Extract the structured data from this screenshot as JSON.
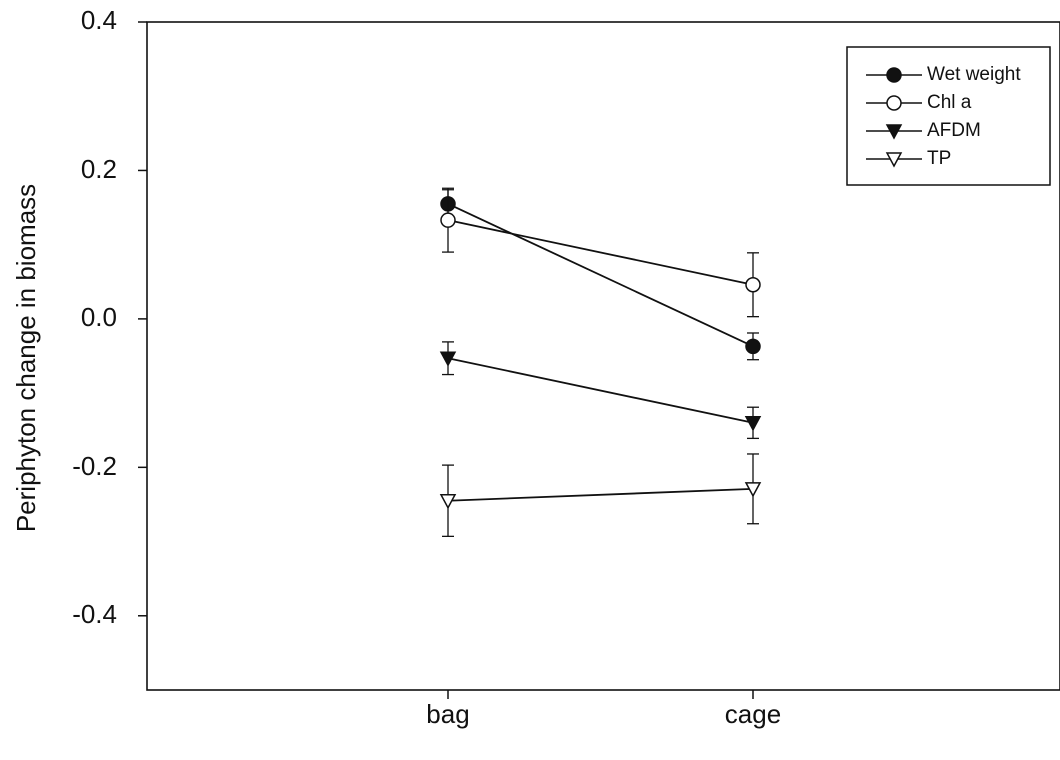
{
  "chart_data": {
    "type": "line",
    "categories": [
      "bag",
      "cage"
    ],
    "xlabel": "",
    "ylabel": "Periphyton change in biomass",
    "ylim": [
      -0.5,
      0.4
    ],
    "yticks": [
      0.4,
      0.2,
      0.0,
      -0.2,
      -0.4
    ],
    "ytick_labels": [
      "0.4",
      "0.2",
      "0.0",
      "-0.2",
      "-0.4"
    ],
    "grid": false,
    "legend_position": "top-right",
    "series": [
      {
        "name": "Wet weight",
        "marker": "circle-filled",
        "values": [
          0.155,
          -0.037
        ],
        "errors": [
          0.019,
          0.018
        ]
      },
      {
        "name": "Chl a",
        "marker": "circle-open",
        "values": [
          0.133,
          0.046
        ],
        "errors": [
          0.043,
          0.043
        ]
      },
      {
        "name": "AFDM",
        "marker": "triangle-down-filled",
        "values": [
          -0.053,
          -0.14
        ],
        "errors": [
          0.022,
          0.021
        ]
      },
      {
        "name": "TP",
        "marker": "triangle-down-open",
        "values": [
          -0.245,
          -0.229
        ],
        "errors": [
          0.048,
          0.047
        ]
      }
    ]
  }
}
